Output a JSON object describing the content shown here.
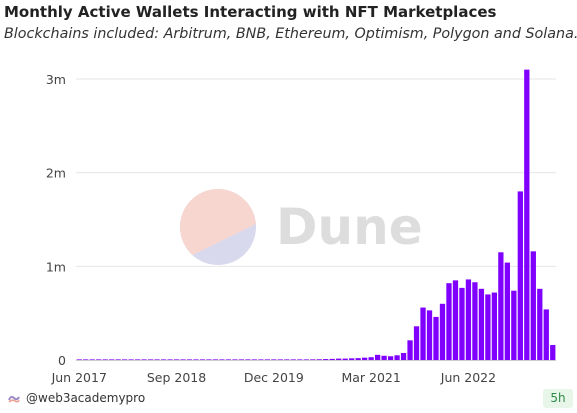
{
  "header": {
    "title": "Monthly Active Wallets Interacting with NFT Marketplaces",
    "subtitle": "Blockchains included: Arbitrum, BNB, Ethereum, Optimism, Polygon and Solana."
  },
  "watermark": {
    "text": "Dune",
    "icon": "dune-logo-icon"
  },
  "footer": {
    "user": "@web3academypro",
    "user_icon": "dune-wave-icon",
    "age": "5h"
  },
  "colors": {
    "bar": "#8000ff",
    "grid": "#e6e6e6",
    "axis": "#cccccc",
    "badge_bg": "#e8f6ea",
    "badge_text": "#2e8b47"
  },
  "chart_data": {
    "type": "bar",
    "title": "Monthly Active Wallets Interacting with NFT Marketplaces",
    "subtitle": "Blockchains included: Arbitrum, BNB, Ethereum, Optimism, Polygon and Solana.",
    "xlabel": "",
    "ylabel": "",
    "ylim": [
      0,
      3100000
    ],
    "yticks": [
      0,
      1000000,
      2000000,
      3000000
    ],
    "ytick_labels": [
      "0",
      "1m",
      "2m",
      "3m"
    ],
    "xtick_labels": [
      "Jun 2017",
      "Sep 2018",
      "Dec 2019",
      "Mar 2021",
      "Jun 2022"
    ],
    "xtick_categories": [
      "2017-06",
      "2018-09",
      "2019-12",
      "2021-03",
      "2022-06"
    ],
    "grid": true,
    "legend": "none",
    "categories": [
      "2017-06",
      "2017-07",
      "2017-08",
      "2017-09",
      "2017-10",
      "2017-11",
      "2017-12",
      "2018-01",
      "2018-02",
      "2018-03",
      "2018-04",
      "2018-05",
      "2018-06",
      "2018-07",
      "2018-08",
      "2018-09",
      "2018-10",
      "2018-11",
      "2018-12",
      "2019-01",
      "2019-02",
      "2019-03",
      "2019-04",
      "2019-05",
      "2019-06",
      "2019-07",
      "2019-08",
      "2019-09",
      "2019-10",
      "2019-11",
      "2019-12",
      "2020-01",
      "2020-02",
      "2020-03",
      "2020-04",
      "2020-05",
      "2020-06",
      "2020-07",
      "2020-08",
      "2020-09",
      "2020-10",
      "2020-11",
      "2020-12",
      "2021-01",
      "2021-02",
      "2021-03",
      "2021-04",
      "2021-05",
      "2021-06",
      "2021-07",
      "2021-08",
      "2021-09",
      "2021-10",
      "2021-11",
      "2021-12",
      "2022-01",
      "2022-02",
      "2022-03",
      "2022-04",
      "2022-05",
      "2022-06",
      "2022-07",
      "2022-08",
      "2022-09",
      "2022-10",
      "2022-11",
      "2022-12",
      "2023-01",
      "2023-02",
      "2023-03",
      "2023-04",
      "2023-05",
      "2023-06",
      "2023-07"
    ],
    "values": [
      2000,
      2000,
      2000,
      2000,
      2000,
      2000,
      3000,
      3000,
      3000,
      3000,
      3000,
      3000,
      3000,
      3000,
      3000,
      3000,
      3000,
      3000,
      3000,
      3000,
      3000,
      3000,
      3000,
      3000,
      3000,
      4000,
      4000,
      4000,
      4000,
      4000,
      5000,
      5000,
      5000,
      6000,
      6000,
      6000,
      7000,
      8000,
      10000,
      12000,
      15000,
      15000,
      18000,
      20000,
      25000,
      30000,
      55000,
      45000,
      40000,
      50000,
      75000,
      210000,
      360000,
      560000,
      530000,
      460000,
      600000,
      820000,
      850000,
      770000,
      860000,
      830000,
      760000,
      700000,
      720000,
      1150000,
      1040000,
      740000,
      1800000,
      3100000,
      1160000,
      760000,
      540000,
      160000
    ]
  }
}
